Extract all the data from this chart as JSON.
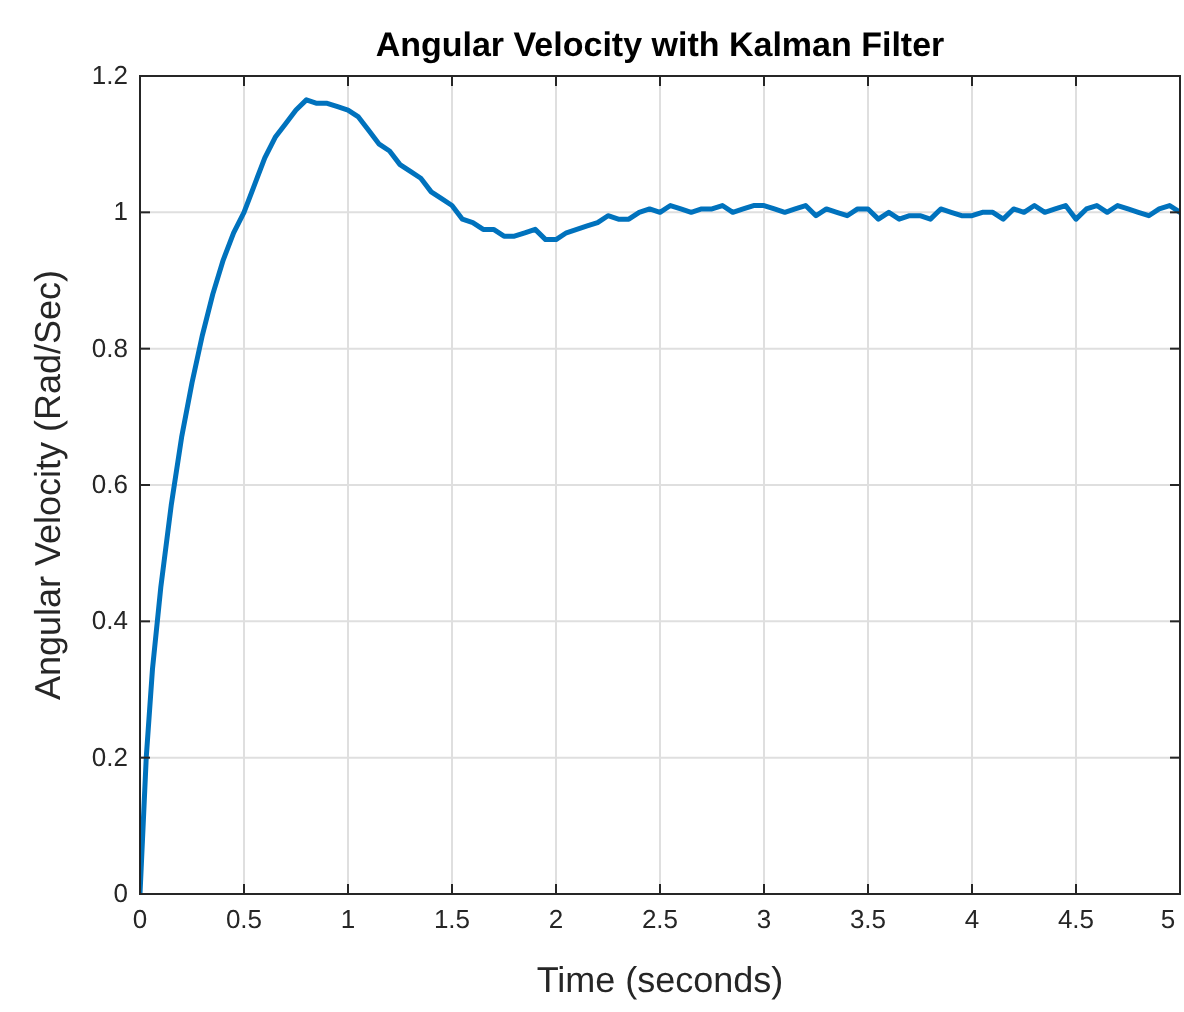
{
  "chart_data": {
    "type": "line",
    "title": "Angular Velocity with Kalman Filter",
    "xlabel": "Time (seconds)",
    "ylabel": "Angular Velocity (Rad/Sec)",
    "xlim": [
      0,
      5
    ],
    "ylim": [
      0,
      1.2
    ],
    "xticks": [
      0,
      0.5,
      1,
      1.5,
      2,
      2.5,
      3,
      3.5,
      4,
      4.5,
      5
    ],
    "yticks": [
      0,
      0.2,
      0.4,
      0.6,
      0.8,
      1,
      1.2
    ],
    "grid": true,
    "series": [
      {
        "color": "#0072bd",
        "x": [
          0,
          0.03,
          0.06,
          0.1,
          0.15,
          0.2,
          0.25,
          0.3,
          0.35,
          0.4,
          0.45,
          0.5,
          0.55,
          0.6,
          0.65,
          0.7,
          0.75,
          0.8,
          0.85,
          0.9,
          0.95,
          1.0,
          1.05,
          1.1,
          1.15,
          1.2,
          1.25,
          1.3,
          1.35,
          1.4,
          1.45,
          1.5,
          1.55,
          1.6,
          1.65,
          1.7,
          1.75,
          1.8,
          1.85,
          1.9,
          1.95,
          2.0,
          2.05,
          2.1,
          2.15,
          2.2,
          2.25,
          2.3,
          2.35,
          2.4,
          2.45,
          2.5,
          2.55,
          2.6,
          2.65,
          2.7,
          2.75,
          2.8,
          2.85,
          2.9,
          2.95,
          3.0,
          3.05,
          3.1,
          3.15,
          3.2,
          3.25,
          3.3,
          3.35,
          3.4,
          3.45,
          3.5,
          3.55,
          3.6,
          3.65,
          3.7,
          3.75,
          3.8,
          3.85,
          3.9,
          3.95,
          4.0,
          4.05,
          4.1,
          4.15,
          4.2,
          4.25,
          4.3,
          4.35,
          4.4,
          4.45,
          4.5,
          4.55,
          4.6,
          4.65,
          4.7,
          4.75,
          4.8,
          4.85,
          4.9,
          4.95,
          5.0
        ],
        "values": [
          0,
          0.2,
          0.33,
          0.45,
          0.57,
          0.67,
          0.75,
          0.82,
          0.88,
          0.93,
          0.97,
          1.0,
          1.04,
          1.08,
          1.11,
          1.13,
          1.15,
          1.165,
          1.16,
          1.16,
          1.155,
          1.15,
          1.14,
          1.12,
          1.1,
          1.09,
          1.07,
          1.06,
          1.05,
          1.03,
          1.02,
          1.01,
          0.99,
          0.985,
          0.975,
          0.975,
          0.965,
          0.965,
          0.97,
          0.975,
          0.96,
          0.96,
          0.97,
          0.975,
          0.98,
          0.985,
          0.995,
          0.99,
          0.99,
          1.0,
          1.005,
          1.0,
          1.01,
          1.005,
          1.0,
          1.005,
          1.005,
          1.01,
          1.0,
          1.005,
          1.01,
          1.01,
          1.005,
          1.0,
          1.005,
          1.01,
          0.995,
          1.005,
          1.0,
          0.995,
          1.005,
          1.005,
          0.99,
          1.0,
          0.99,
          0.995,
          0.995,
          0.99,
          1.005,
          1.0,
          0.995,
          0.995,
          1.0,
          1.0,
          0.99,
          1.005,
          1.0,
          1.01,
          1.0,
          1.005,
          1.01,
          0.99,
          1.005,
          1.01,
          1.0,
          1.01,
          1.005,
          1.0,
          0.995,
          1.005,
          1.01,
          1.0
        ]
      }
    ]
  }
}
